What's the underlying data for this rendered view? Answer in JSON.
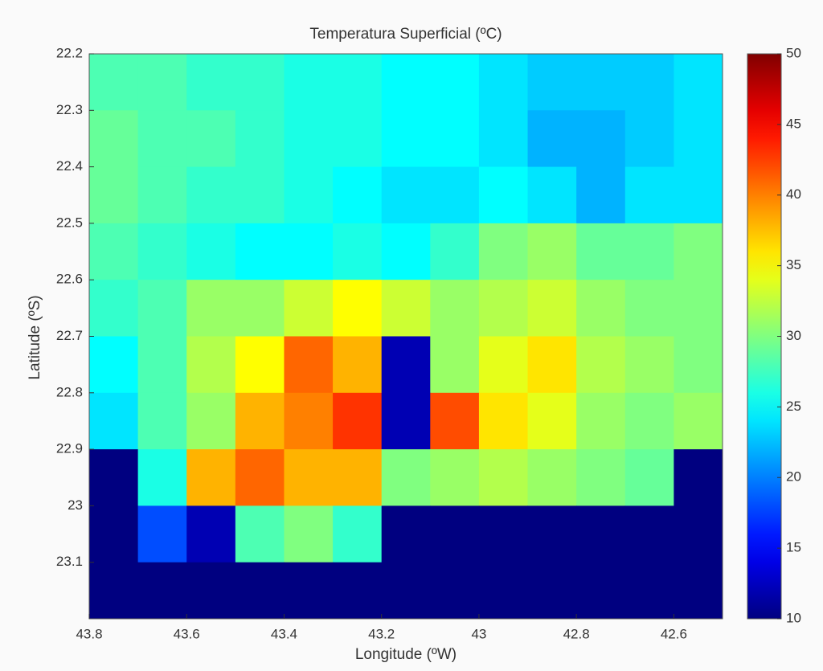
{
  "chart_data": {
    "type": "heatmap",
    "title": "Temperatura Superficial (ºC)",
    "xlabel": "Longitude (ºW)",
    "ylabel": "Latitude (ºS)",
    "x": [
      43.75,
      43.65,
      43.55,
      43.45,
      43.35,
      43.25,
      43.15,
      43.05,
      42.95,
      42.85,
      42.75,
      42.65,
      42.55
    ],
    "y": [
      22.25,
      22.35,
      22.45,
      22.55,
      22.65,
      22.75,
      22.85,
      22.95,
      23.05,
      23.15
    ],
    "z": [
      [
        28,
        28,
        27,
        27,
        26,
        26,
        25,
        25,
        24,
        23,
        23,
        23,
        24
      ],
      [
        29,
        28,
        28,
        27,
        26,
        26,
        25,
        25,
        24,
        22,
        22,
        23,
        24
      ],
      [
        29,
        28,
        27,
        27,
        26,
        25,
        24,
        24,
        25,
        24,
        22,
        24,
        24
      ],
      [
        28,
        27,
        26,
        25,
        25,
        26,
        25,
        27,
        30,
        31,
        29,
        29,
        30
      ],
      [
        27,
        28,
        31,
        31,
        33,
        35,
        33,
        31,
        32,
        33,
        31,
        30,
        30
      ],
      [
        25,
        28,
        32,
        35,
        41,
        38,
        12,
        31,
        34,
        36,
        32,
        31,
        30
      ],
      [
        24,
        28,
        31,
        38,
        40,
        43,
        12,
        42,
        36,
        34,
        31,
        30,
        31
      ],
      [
        10,
        26,
        38,
        41,
        38,
        38,
        30,
        31,
        32,
        31,
        30,
        29,
        10
      ],
      [
        10,
        18,
        12,
        28,
        30,
        27,
        10,
        10,
        10,
        10,
        10,
        10,
        10
      ],
      [
        10,
        10,
        10,
        10,
        10,
        10,
        10,
        10,
        10,
        10,
        10,
        10,
        10
      ]
    ],
    "colormap": "jet",
    "xlim": [
      43.8,
      42.5
    ],
    "xticks": [
      43.8,
      43.6,
      43.4,
      43.2,
      43,
      42.8,
      42.6
    ],
    "ylim": [
      22.2,
      23.2
    ],
    "yticks": [
      22.2,
      22.3,
      22.4,
      22.5,
      22.6,
      22.7,
      22.8,
      22.9,
      23,
      23.1
    ],
    "clim": [
      10,
      50
    ],
    "cticks": [
      10,
      15,
      20,
      25,
      30,
      35,
      40,
      45,
      50
    ]
  }
}
